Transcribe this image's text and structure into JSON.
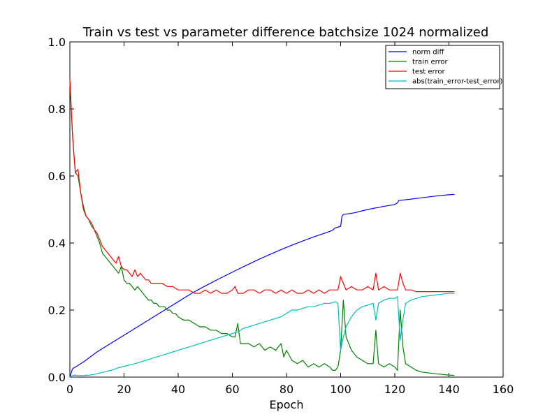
{
  "chart_data": {
    "type": "line",
    "title": "Train vs test vs parameter difference batchsize 1024 normalized",
    "xlabel": "Epoch",
    "ylabel": "",
    "xlim": [
      0,
      160
    ],
    "ylim": [
      0.0,
      1.0
    ],
    "xticks": [
      0,
      20,
      40,
      60,
      80,
      100,
      120,
      140,
      160
    ],
    "yticks": [
      0.0,
      0.2,
      0.4,
      0.6,
      0.8,
      1.0
    ],
    "xtick_labels": [
      "0",
      "20",
      "40",
      "60",
      "80",
      "100",
      "120",
      "140",
      "160"
    ],
    "ytick_labels": [
      "0.0",
      "0.2",
      "0.4",
      "0.6",
      "0.8",
      "1.0"
    ],
    "grid": false,
    "legend_position": "top-right",
    "series": [
      {
        "name": "norm diff",
        "color": "#0000ff",
        "points": [
          [
            0,
            0.0
          ],
          [
            1,
            0.025
          ],
          [
            2,
            0.03
          ],
          [
            5,
            0.045
          ],
          [
            10,
            0.075
          ],
          [
            15,
            0.1
          ],
          [
            20,
            0.125
          ],
          [
            25,
            0.15
          ],
          [
            30,
            0.175
          ],
          [
            35,
            0.2
          ],
          [
            40,
            0.225
          ],
          [
            45,
            0.25
          ],
          [
            50,
            0.272
          ],
          [
            55,
            0.293
          ],
          [
            60,
            0.313
          ],
          [
            65,
            0.333
          ],
          [
            70,
            0.352
          ],
          [
            75,
            0.37
          ],
          [
            80,
            0.387
          ],
          [
            85,
            0.403
          ],
          [
            90,
            0.418
          ],
          [
            95,
            0.432
          ],
          [
            97,
            0.438
          ],
          [
            98,
            0.445
          ],
          [
            100,
            0.45
          ],
          [
            100.5,
            0.48
          ],
          [
            101,
            0.485
          ],
          [
            105,
            0.49
          ],
          [
            110,
            0.5
          ],
          [
            115,
            0.508
          ],
          [
            120,
            0.515
          ],
          [
            121,
            0.52
          ],
          [
            121.5,
            0.527
          ],
          [
            125,
            0.53
          ],
          [
            130,
            0.535
          ],
          [
            135,
            0.54
          ],
          [
            140,
            0.544
          ],
          [
            142,
            0.545
          ]
        ]
      },
      {
        "name": "train error",
        "color": "#008000",
        "points": [
          [
            0,
            0.88
          ],
          [
            1,
            0.72
          ],
          [
            2,
            0.61
          ],
          [
            3,
            0.6
          ],
          [
            4,
            0.55
          ],
          [
            5,
            0.51
          ],
          [
            6,
            0.48
          ],
          [
            7,
            0.47
          ],
          [
            8,
            0.45
          ],
          [
            9,
            0.44
          ],
          [
            10,
            0.42
          ],
          [
            11,
            0.4
          ],
          [
            12,
            0.37
          ],
          [
            13,
            0.36
          ],
          [
            14,
            0.35
          ],
          [
            15,
            0.34
          ],
          [
            16,
            0.33
          ],
          [
            17,
            0.32
          ],
          [
            18,
            0.31
          ],
          [
            19,
            0.33
          ],
          [
            20,
            0.29
          ],
          [
            21,
            0.28
          ],
          [
            22,
            0.28
          ],
          [
            23,
            0.27
          ],
          [
            24,
            0.26
          ],
          [
            25,
            0.27
          ],
          [
            26,
            0.26
          ],
          [
            27,
            0.25
          ],
          [
            28,
            0.24
          ],
          [
            29,
            0.23
          ],
          [
            30,
            0.23
          ],
          [
            31,
            0.22
          ],
          [
            32,
            0.22
          ],
          [
            33,
            0.21
          ],
          [
            34,
            0.21
          ],
          [
            35,
            0.21
          ],
          [
            36,
            0.2
          ],
          [
            37,
            0.2
          ],
          [
            38,
            0.19
          ],
          [
            39,
            0.19
          ],
          [
            40,
            0.18
          ],
          [
            42,
            0.17
          ],
          [
            44,
            0.17
          ],
          [
            46,
            0.16
          ],
          [
            48,
            0.15
          ],
          [
            50,
            0.15
          ],
          [
            52,
            0.14
          ],
          [
            54,
            0.14
          ],
          [
            56,
            0.13
          ],
          [
            58,
            0.13
          ],
          [
            60,
            0.12
          ],
          [
            61,
            0.12
          ],
          [
            62,
            0.16
          ],
          [
            63,
            0.1
          ],
          [
            66,
            0.1
          ],
          [
            68,
            0.09
          ],
          [
            70,
            0.1
          ],
          [
            72,
            0.08
          ],
          [
            74,
            0.09
          ],
          [
            76,
            0.08
          ],
          [
            78,
            0.1
          ],
          [
            79,
            0.06
          ],
          [
            80,
            0.08
          ],
          [
            82,
            0.05
          ],
          [
            84,
            0.04
          ],
          [
            86,
            0.05
          ],
          [
            88,
            0.03
          ],
          [
            90,
            0.04
          ],
          [
            92,
            0.03
          ],
          [
            94,
            0.04
          ],
          [
            96,
            0.03
          ],
          [
            97,
            0.02
          ],
          [
            98,
            0.02
          ],
          [
            99,
            0.03
          ],
          [
            100,
            0.08
          ],
          [
            101,
            0.23
          ],
          [
            102,
            0.12
          ],
          [
            104,
            0.08
          ],
          [
            106,
            0.06
          ],
          [
            108,
            0.05
          ],
          [
            110,
            0.04
          ],
          [
            112,
            0.04
          ],
          [
            113,
            0.14
          ],
          [
            114,
            0.04
          ],
          [
            116,
            0.03
          ],
          [
            118,
            0.04
          ],
          [
            120,
            0.03
          ],
          [
            121,
            0.02
          ],
          [
            122,
            0.2
          ],
          [
            123,
            0.09
          ],
          [
            124,
            0.04
          ],
          [
            126,
            0.03
          ],
          [
            128,
            0.02
          ],
          [
            130,
            0.015
          ],
          [
            135,
            0.01
          ],
          [
            140,
            0.006
          ],
          [
            142,
            0.005
          ]
        ]
      },
      {
        "name": "test error",
        "color": "#ff0000",
        "points": [
          [
            0,
            0.89
          ],
          [
            1,
            0.72
          ],
          [
            2,
            0.61
          ],
          [
            3,
            0.62
          ],
          [
            4,
            0.55
          ],
          [
            5,
            0.5
          ],
          [
            6,
            0.48
          ],
          [
            7,
            0.47
          ],
          [
            8,
            0.46
          ],
          [
            9,
            0.44
          ],
          [
            10,
            0.43
          ],
          [
            11,
            0.41
          ],
          [
            12,
            0.39
          ],
          [
            13,
            0.38
          ],
          [
            14,
            0.37
          ],
          [
            15,
            0.36
          ],
          [
            16,
            0.35
          ],
          [
            17,
            0.34
          ],
          [
            18,
            0.36
          ],
          [
            19,
            0.33
          ],
          [
            20,
            0.32
          ],
          [
            21,
            0.32
          ],
          [
            22,
            0.31
          ],
          [
            23,
            0.3
          ],
          [
            24,
            0.32
          ],
          [
            25,
            0.3
          ],
          [
            26,
            0.31
          ],
          [
            27,
            0.3
          ],
          [
            28,
            0.29
          ],
          [
            29,
            0.29
          ],
          [
            30,
            0.28
          ],
          [
            32,
            0.28
          ],
          [
            34,
            0.28
          ],
          [
            36,
            0.27
          ],
          [
            38,
            0.27
          ],
          [
            40,
            0.26
          ],
          [
            42,
            0.26
          ],
          [
            44,
            0.26
          ],
          [
            46,
            0.25
          ],
          [
            48,
            0.25
          ],
          [
            50,
            0.26
          ],
          [
            52,
            0.25
          ],
          [
            54,
            0.26
          ],
          [
            56,
            0.25
          ],
          [
            58,
            0.25
          ],
          [
            60,
            0.26
          ],
          [
            61,
            0.27
          ],
          [
            62,
            0.25
          ],
          [
            64,
            0.25
          ],
          [
            66,
            0.26
          ],
          [
            68,
            0.26
          ],
          [
            70,
            0.25
          ],
          [
            72,
            0.26
          ],
          [
            74,
            0.26
          ],
          [
            76,
            0.25
          ],
          [
            78,
            0.26
          ],
          [
            80,
            0.25
          ],
          [
            82,
            0.26
          ],
          [
            84,
            0.25
          ],
          [
            86,
            0.25
          ],
          [
            88,
            0.26
          ],
          [
            90,
            0.25
          ],
          [
            92,
            0.26
          ],
          [
            94,
            0.25
          ],
          [
            96,
            0.26
          ],
          [
            98,
            0.26
          ],
          [
            99,
            0.26
          ],
          [
            100,
            0.3
          ],
          [
            101,
            0.28
          ],
          [
            102,
            0.26
          ],
          [
            104,
            0.27
          ],
          [
            106,
            0.26
          ],
          [
            108,
            0.26
          ],
          [
            110,
            0.27
          ],
          [
            112,
            0.26
          ],
          [
            113,
            0.31
          ],
          [
            114,
            0.26
          ],
          [
            116,
            0.27
          ],
          [
            118,
            0.26
          ],
          [
            120,
            0.26
          ],
          [
            121,
            0.26
          ],
          [
            122,
            0.31
          ],
          [
            123,
            0.28
          ],
          [
            124,
            0.26
          ],
          [
            126,
            0.26
          ],
          [
            128,
            0.255
          ],
          [
            130,
            0.255
          ],
          [
            135,
            0.255
          ],
          [
            140,
            0.255
          ],
          [
            142,
            0.255
          ]
        ]
      },
      {
        "name": "abs(train_error-test_error)",
        "color": "#00bfbf",
        "points": [
          [
            0,
            0.0
          ],
          [
            1,
            0.005
          ],
          [
            2,
            0.006
          ],
          [
            3,
            0.004
          ],
          [
            4,
            0.005
          ],
          [
            5,
            0.004
          ],
          [
            6,
            0.006
          ],
          [
            7,
            0.005
          ],
          [
            8,
            0.007
          ],
          [
            9,
            0.008
          ],
          [
            10,
            0.01
          ],
          [
            12,
            0.014
          ],
          [
            14,
            0.018
          ],
          [
            16,
            0.022
          ],
          [
            18,
            0.028
          ],
          [
            20,
            0.032
          ],
          [
            22,
            0.036
          ],
          [
            24,
            0.04
          ],
          [
            26,
            0.045
          ],
          [
            28,
            0.05
          ],
          [
            30,
            0.055
          ],
          [
            32,
            0.06
          ],
          [
            34,
            0.065
          ],
          [
            36,
            0.07
          ],
          [
            38,
            0.075
          ],
          [
            40,
            0.08
          ],
          [
            42,
            0.085
          ],
          [
            44,
            0.09
          ],
          [
            46,
            0.095
          ],
          [
            48,
            0.1
          ],
          [
            50,
            0.105
          ],
          [
            52,
            0.11
          ],
          [
            54,
            0.115
          ],
          [
            56,
            0.12
          ],
          [
            58,
            0.125
          ],
          [
            60,
            0.13
          ],
          [
            62,
            0.135
          ],
          [
            64,
            0.145
          ],
          [
            66,
            0.15
          ],
          [
            68,
            0.155
          ],
          [
            70,
            0.16
          ],
          [
            72,
            0.165
          ],
          [
            74,
            0.17
          ],
          [
            76,
            0.175
          ],
          [
            78,
            0.18
          ],
          [
            80,
            0.19
          ],
          [
            82,
            0.2
          ],
          [
            84,
            0.2
          ],
          [
            86,
            0.205
          ],
          [
            88,
            0.21
          ],
          [
            90,
            0.21
          ],
          [
            92,
            0.215
          ],
          [
            94,
            0.22
          ],
          [
            96,
            0.22
          ],
          [
            98,
            0.225
          ],
          [
            99,
            0.22
          ],
          [
            100,
            0.08
          ],
          [
            101,
            0.12
          ],
          [
            102,
            0.15
          ],
          [
            104,
            0.18
          ],
          [
            106,
            0.2
          ],
          [
            108,
            0.21
          ],
          [
            110,
            0.215
          ],
          [
            112,
            0.22
          ],
          [
            113,
            0.17
          ],
          [
            114,
            0.22
          ],
          [
            116,
            0.23
          ],
          [
            118,
            0.235
          ],
          [
            120,
            0.235
          ],
          [
            121,
            0.24
          ],
          [
            122,
            0.11
          ],
          [
            123,
            0.17
          ],
          [
            124,
            0.22
          ],
          [
            126,
            0.23
          ],
          [
            128,
            0.235
          ],
          [
            130,
            0.24
          ],
          [
            135,
            0.245
          ],
          [
            140,
            0.25
          ],
          [
            142,
            0.25
          ]
        ]
      }
    ]
  }
}
